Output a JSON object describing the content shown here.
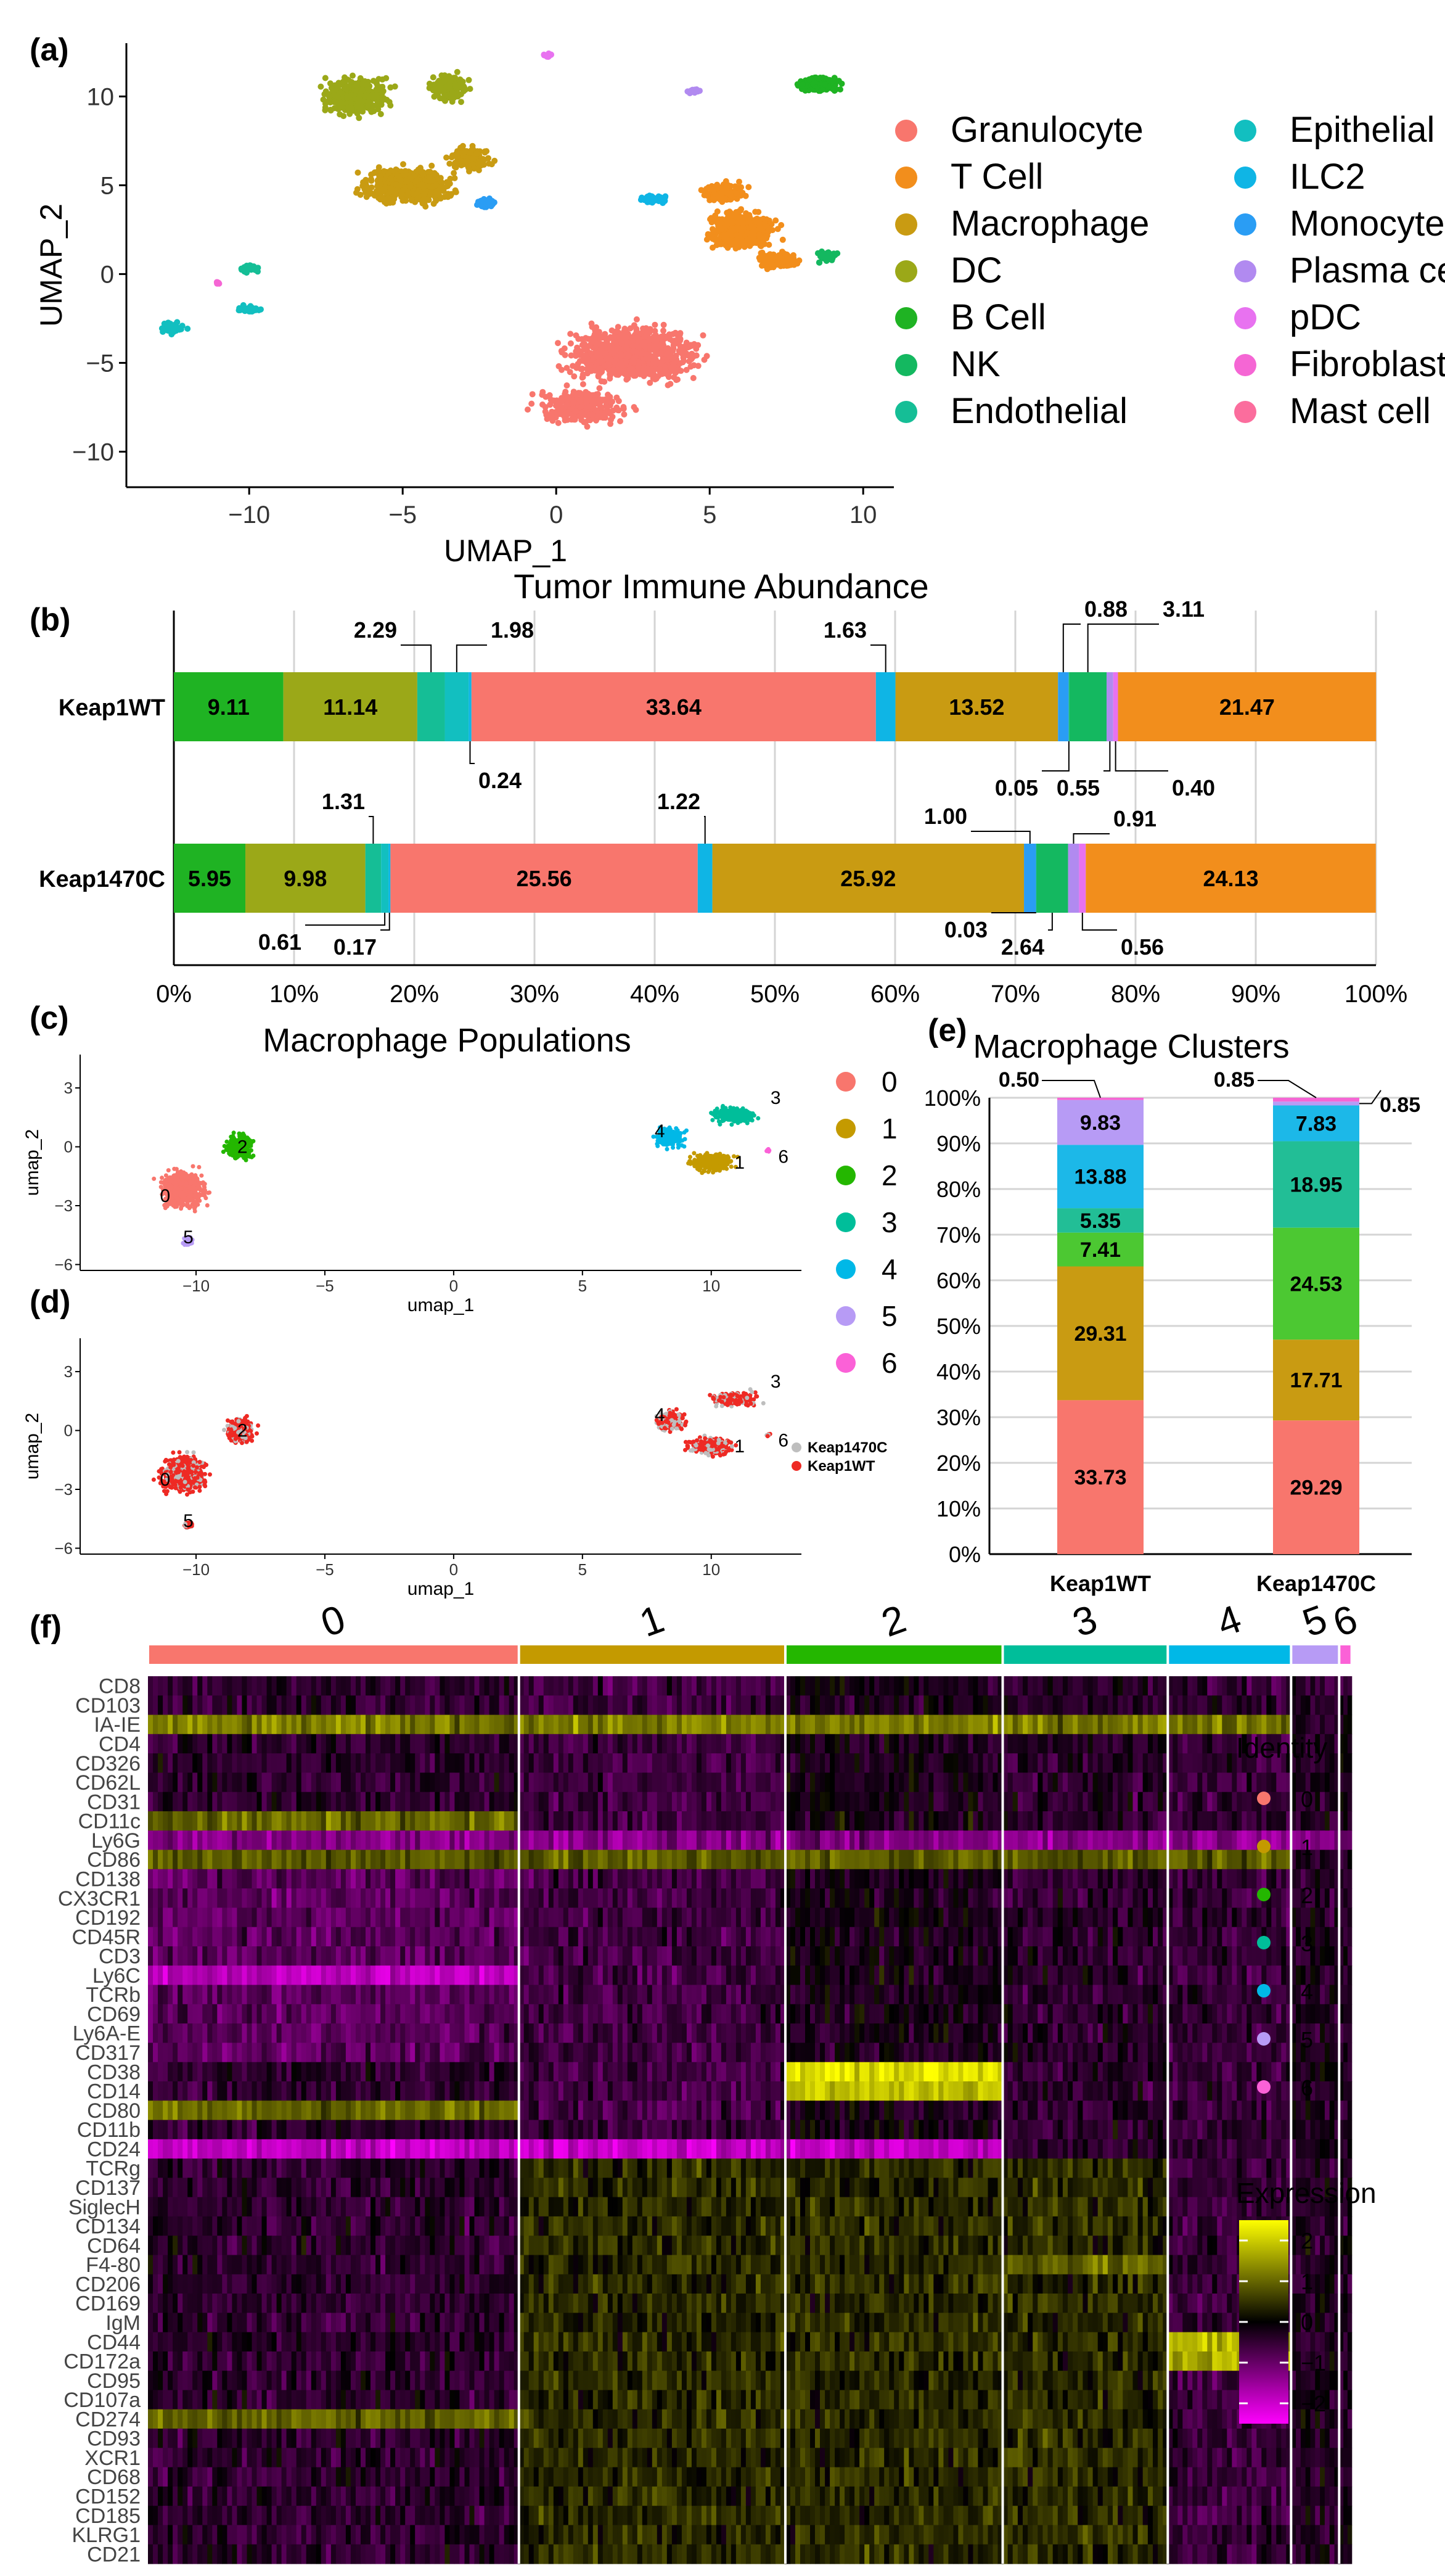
{
  "chart_data": [
    {
      "panel": "(a)",
      "type": "scatter",
      "title": "",
      "xlabel": "UMAP_1",
      "ylabel": "UMAP_2",
      "xticks": [
        "−10",
        "−5",
        "0",
        "5",
        "10"
      ],
      "yticks": [
        "10",
        "5",
        "0",
        "−5",
        "−10"
      ],
      "legend": [
        {
          "name": "Granulocyte",
          "color": "#F8766D"
        },
        {
          "name": "T Cell",
          "color": "#F28E1C"
        },
        {
          "name": "Macrophage",
          "color": "#C99B12"
        },
        {
          "name": "DC",
          "color": "#9BA818"
        },
        {
          "name": "B Cell",
          "color": "#1FB323"
        },
        {
          "name": "NK",
          "color": "#14B860"
        },
        {
          "name": "Endothelial",
          "color": "#15BE96"
        },
        {
          "name": "Epithelial",
          "color": "#12BFC0"
        },
        {
          "name": "ILC2",
          "color": "#0FB5E5"
        },
        {
          "name": "Monocyte",
          "color": "#2A9DF4"
        },
        {
          "name": "Plasma cell",
          "color": "#B18AF0"
        },
        {
          "name": "pDC",
          "color": "#E872F0"
        },
        {
          "name": "Fibroblast",
          "color": "#F566D4"
        },
        {
          "name": "Mast cell",
          "color": "#FB6D9D"
        }
      ]
    },
    {
      "panel": "(b)",
      "type": "bar",
      "title": "Tumor Immune Abundance",
      "orientation": "horizontal-stacked",
      "xticks": [
        "0%",
        "10%",
        "20%",
        "30%",
        "40%",
        "50%",
        "60%",
        "70%",
        "80%",
        "90%",
        "100%"
      ],
      "rows": [
        {
          "name": "Keap1WT",
          "segments": [
            {
              "label": "9.11",
              "value": 9.11,
              "color": "#1FB323"
            },
            {
              "label": "11.14",
              "value": 11.14,
              "color": "#9BA818"
            },
            {
              "label": "2.29",
              "value": 2.29,
              "color": "#15BE96"
            },
            {
              "label": "1.98",
              "value": 1.98,
              "color": "#12BFC0"
            },
            {
              "label": "0.24",
              "value": 0.24,
              "color": "#0FB5E5"
            },
            {
              "label": "33.64",
              "value": 33.64,
              "color": "#F8766D"
            },
            {
              "label": "1.63",
              "value": 1.63,
              "color": "#0FB5E5"
            },
            {
              "label": "13.52",
              "value": 13.52,
              "color": "#C99B12"
            },
            {
              "label": "0.88",
              "value": 0.88,
              "color": "#2A9DF4"
            },
            {
              "label": "0.05",
              "value": 0.05,
              "color": "#15BE96"
            },
            {
              "label": "3.11",
              "value": 3.11,
              "color": "#14B860"
            },
            {
              "label": "0.55",
              "value": 0.55,
              "color": "#B18AF0"
            },
            {
              "label": "0.40",
              "value": 0.4,
              "color": "#E872F0"
            },
            {
              "label": "21.47",
              "value": 21.47,
              "color": "#F28E1C"
            }
          ]
        },
        {
          "name": "Keap1470C",
          "segments": [
            {
              "label": "5.95",
              "value": 5.95,
              "color": "#1FB323"
            },
            {
              "label": "9.98",
              "value": 9.98,
              "color": "#9BA818"
            },
            {
              "label": "1.31",
              "value": 1.31,
              "color": "#15BE96"
            },
            {
              "label": "0.61",
              "value": 0.61,
              "color": "#12BFC0"
            },
            {
              "label": "0.17",
              "value": 0.17,
              "color": "#0FB5E5"
            },
            {
              "label": "25.56",
              "value": 25.56,
              "color": "#F8766D"
            },
            {
              "label": "1.22",
              "value": 1.22,
              "color": "#0FB5E5"
            },
            {
              "label": "25.92",
              "value": 25.92,
              "color": "#C99B12"
            },
            {
              "label": "1.00",
              "value": 1.0,
              "color": "#2A9DF4"
            },
            {
              "label": "0.03",
              "value": 0.03,
              "color": "#15BE96"
            },
            {
              "label": "2.64",
              "value": 2.64,
              "color": "#14B860"
            },
            {
              "label": "0.91",
              "value": 0.91,
              "color": "#B18AF0"
            },
            {
              "label": "0.56",
              "value": 0.56,
              "color": "#E872F0"
            },
            {
              "label": "24.13",
              "value": 24.13,
              "color": "#F28E1C"
            }
          ]
        }
      ]
    },
    {
      "panel": "(c)",
      "type": "scatter",
      "title": "Macrophage Populations",
      "xlabel": "umap_1",
      "ylabel": "umap_2",
      "xticks": [
        "−10",
        "−5",
        "0",
        "5",
        "10"
      ],
      "yticks": [
        "3",
        "0",
        "−3",
        "−6"
      ],
      "cluster_labels": [
        "0",
        "1",
        "2",
        "3",
        "4",
        "5",
        "6"
      ],
      "legend": [
        {
          "name": "0",
          "color": "#F8766D"
        },
        {
          "name": "1",
          "color": "#C49A00"
        },
        {
          "name": "2",
          "color": "#24B700"
        },
        {
          "name": "3",
          "color": "#00BE9A"
        },
        {
          "name": "4",
          "color": "#00B8E7"
        },
        {
          "name": "5",
          "color": "#B79BF5"
        },
        {
          "name": "6",
          "color": "#FB61D7"
        }
      ]
    },
    {
      "panel": "(d)",
      "type": "scatter",
      "title": "",
      "xlabel": "umap_1",
      "ylabel": "umap_2",
      "xticks": [
        "−10",
        "−5",
        "0",
        "5",
        "10"
      ],
      "yticks": [
        "3",
        "0",
        "−3",
        "−6"
      ],
      "cluster_labels": [
        "0",
        "1",
        "2",
        "3",
        "4",
        "5",
        "6"
      ],
      "legend": [
        {
          "name": "Keap1470C",
          "color": "#BEBEBE"
        },
        {
          "name": "Keap1WT",
          "color": "#EE2A24"
        }
      ]
    },
    {
      "panel": "(e)",
      "type": "bar",
      "title": "Macrophage Clusters",
      "orientation": "vertical-stacked",
      "yticks": [
        "0%",
        "10%",
        "20%",
        "30%",
        "40%",
        "50%",
        "60%",
        "70%",
        "80%",
        "90%",
        "100%"
      ],
      "categories": [
        "Keap1WT",
        "Keap1470C"
      ],
      "series": [
        {
          "name": "0",
          "color": "#F8766D",
          "values": [
            33.73,
            29.29
          ],
          "labels": [
            "33.73",
            "29.29"
          ]
        },
        {
          "name": "1",
          "color": "#C99B12",
          "values": [
            29.31,
            17.71
          ],
          "labels": [
            "29.31",
            "17.71"
          ]
        },
        {
          "name": "2",
          "color": "#4CC832",
          "values": [
            7.41,
            24.53
          ],
          "labels": [
            "7.41",
            "24.53"
          ]
        },
        {
          "name": "3",
          "color": "#22BE96",
          "values": [
            5.35,
            18.95
          ],
          "labels": [
            "5.35",
            "18.95"
          ]
        },
        {
          "name": "4",
          "color": "#1CB8E8",
          "values": [
            13.88,
            7.83
          ],
          "labels": [
            "13.88",
            "7.83"
          ]
        },
        {
          "name": "5",
          "color": "#B79BF5",
          "values": [
            9.83,
            0.85
          ],
          "labels": [
            "9.83",
            "0.85"
          ]
        },
        {
          "name": "6",
          "color": "#F566D4",
          "values": [
            0.5,
            0.85
          ],
          "labels": [
            "0.50",
            "0.85"
          ]
        }
      ]
    },
    {
      "panel": "(f)",
      "type": "heatmap",
      "title": "",
      "columns": [
        "0",
        "1",
        "2",
        "3",
        "4",
        "5",
        "6"
      ],
      "column_colors": [
        "#F8766D",
        "#C49A00",
        "#24B700",
        "#00BE9A",
        "#00B8E7",
        "#B79BF5",
        "#FB61D7"
      ],
      "column_fractions": [
        0.355,
        0.255,
        0.208,
        0.158,
        0.118,
        0.046,
        0.012
      ],
      "rows": [
        "CD8",
        "CD103",
        "IA-IE",
        "CD4",
        "CD326",
        "CD62L",
        "CD31",
        "CD11c",
        "Ly6G",
        "CD86",
        "CD138",
        "CX3CR1",
        "CD192",
        "CD45R",
        "CD3",
        "Ly6C",
        "TCRb",
        "CD69",
        "Ly6A-E",
        "CD317",
        "CD38",
        "CD14",
        "CD80",
        "CD11b",
        "CD24",
        "TCRg",
        "CD137",
        "SiglecH",
        "CD134",
        "CD64",
        "F4-80",
        "CD206",
        "CD169",
        "IgM",
        "CD44",
        "CD172a",
        "CD95",
        "CD107a",
        "CD274",
        "CD93",
        "XCR1",
        "CD68",
        "CD152",
        "CD185",
        "KLRG1",
        "CD21"
      ],
      "identity_title": "Identity",
      "expression_title": "Expression",
      "scale_ticks": [
        "2",
        "1",
        "0",
        "−1",
        "−2"
      ],
      "scale_range": [
        -2.5,
        2.5
      ]
    }
  ],
  "panels": {
    "a": "(a)",
    "b": "(b)",
    "c": "(c)",
    "d": "(d)",
    "e": "(e)",
    "f": "(f)"
  }
}
